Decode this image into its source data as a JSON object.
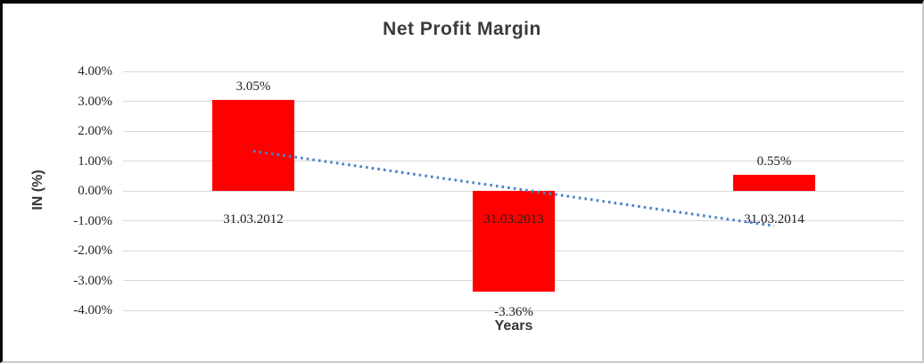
{
  "chart_data": {
    "type": "bar",
    "title": "Net Profit Margin",
    "xlabel": "Years",
    "ylabel": "IN (%)",
    "categories": [
      "31.03.2012",
      "31.03.2013",
      "31.03.2014"
    ],
    "values": [
      3.05,
      -3.36,
      0.55
    ],
    "data_labels": [
      "3.05%",
      "-3.36%",
      "0.55%"
    ],
    "ylim": [
      -4,
      4
    ],
    "yticks": [
      {
        "value": 4,
        "label": "4.00%"
      },
      {
        "value": 3,
        "label": "3.00%"
      },
      {
        "value": 2,
        "label": "2.00%"
      },
      {
        "value": 1,
        "label": "1.00%"
      },
      {
        "value": 0,
        "label": "0.00%"
      },
      {
        "value": -1,
        "label": "-1.00%"
      },
      {
        "value": -2,
        "label": "-2.00%"
      },
      {
        "value": -3,
        "label": "-3.00%"
      },
      {
        "value": -4,
        "label": "-4.00%"
      }
    ],
    "grid": true,
    "legend_position": "none",
    "bar_color": "#ff0000",
    "gridline_color": "#d9d9d9",
    "background_color": "#ffffff",
    "trendline": {
      "type": "linear",
      "style": "dotted",
      "color": "#4a82c4",
      "start_value": 1.33,
      "end_value": -1.17
    }
  }
}
